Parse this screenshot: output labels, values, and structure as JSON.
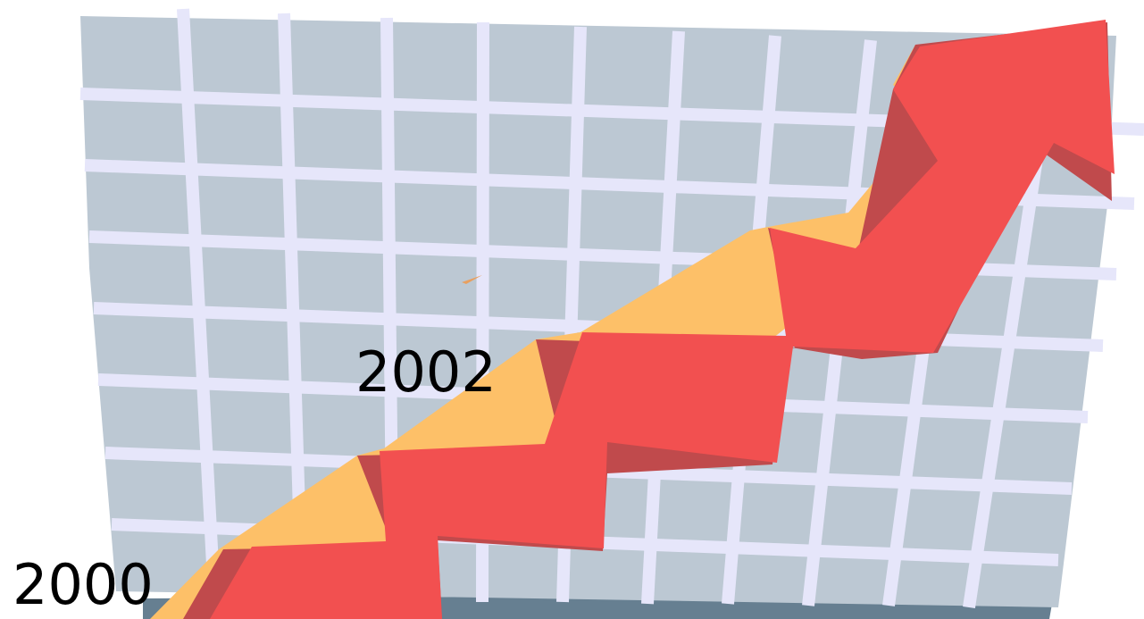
{
  "labels": [
    "2000",
    "2002"
  ]
}
